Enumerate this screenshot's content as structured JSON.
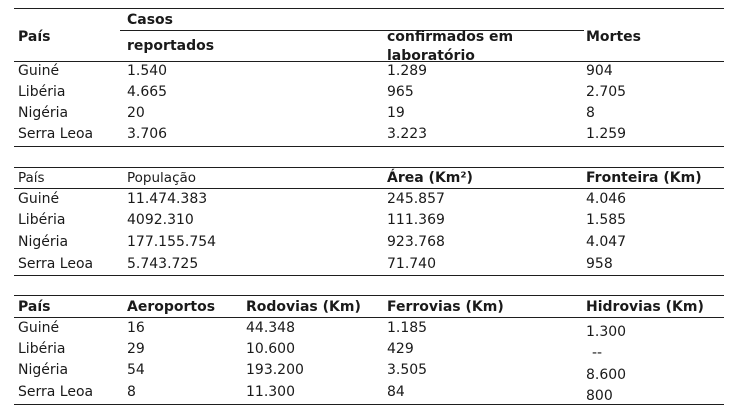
{
  "table1": {
    "headers": {
      "country": "País",
      "casos": "Casos",
      "reportados": "reportados",
      "confirmados_1": "confirmados em",
      "confirmados_2": "laboratório",
      "mortes": "Mortes"
    },
    "rows": [
      [
        "Guiné",
        "1.540",
        "1.289",
        "904"
      ],
      [
        "Libéria",
        "4.665",
        "965",
        "2.705"
      ],
      [
        "Nigéria",
        "20",
        "19",
        "8"
      ],
      [
        "Serra Leoa",
        "3.706",
        "3.223",
        "1.259"
      ]
    ]
  },
  "table2": {
    "headers": {
      "country": "País",
      "populacao": "População",
      "area": "Área (Km²)",
      "fronteira": "Fronteira (Km)"
    },
    "rows": [
      [
        "Guiné",
        "11.474.383",
        "245.857",
        "4.046"
      ],
      [
        "Libéria",
        "4092.310",
        "111.369",
        "1.585"
      ],
      [
        "Nigéria",
        "177.155.754",
        "923.768",
        "4.047"
      ],
      [
        "Serra Leoa",
        "5.743.725",
        "71.740",
        "958"
      ]
    ]
  },
  "table3": {
    "headers": {
      "country": "País",
      "aeroportos": "Aeroportos",
      "rodovias": "Rodovias (Km)",
      "ferrovias": "Ferrovias (Km)",
      "hidrovias": "Hidrovias (Km)"
    },
    "rows": [
      [
        "Guiné",
        "16",
        "44.348",
        "1.185",
        "1.300"
      ],
      [
        "Libéria",
        "29",
        "10.600",
        "429",
        "--"
      ],
      [
        "Nigéria",
        "54",
        "193.200",
        "3.505",
        "8.600"
      ],
      [
        "Serra Leoa",
        "8",
        "11.300",
        "84",
        "800"
      ]
    ]
  }
}
